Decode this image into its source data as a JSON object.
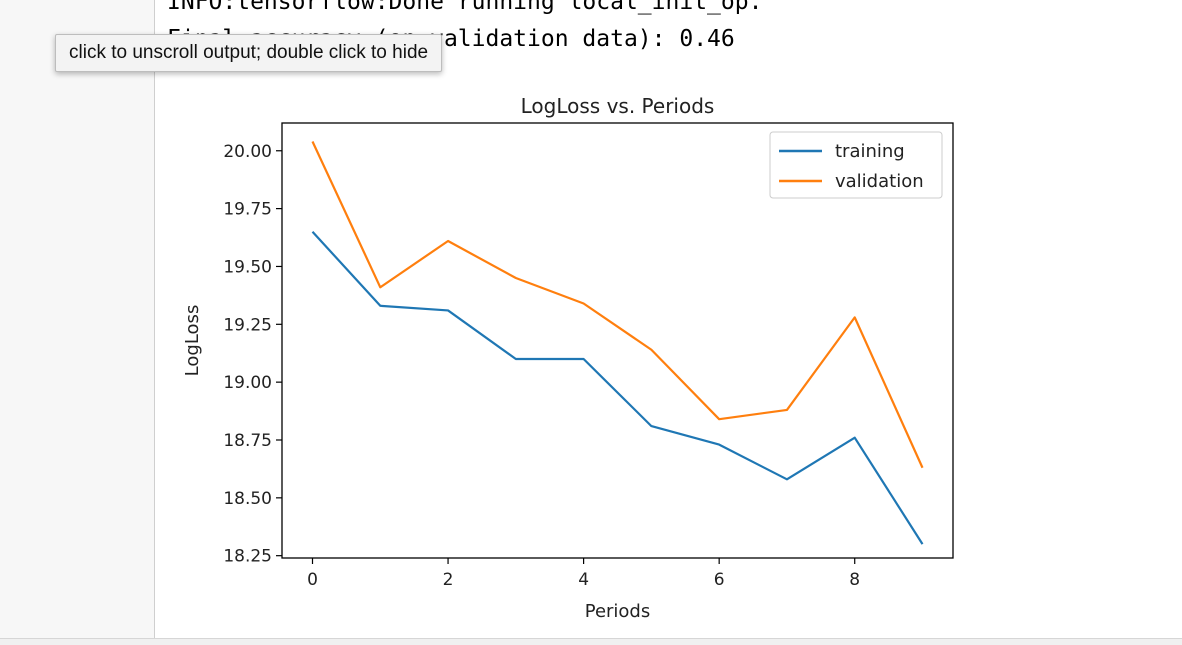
{
  "output": {
    "log_line_1": "INFO:tensorflow:Done running local_init_op.",
    "log_line_2": "Final accuracy (on validation data): 0.46"
  },
  "tooltip": {
    "text": "click to unscroll output; double click to hide"
  },
  "chart_data": {
    "type": "line",
    "title": "LogLoss vs. Periods",
    "xlabel": "Periods",
    "ylabel": "LogLoss",
    "x": [
      0,
      1,
      2,
      3,
      4,
      5,
      6,
      7,
      8,
      9
    ],
    "xlim": [
      -0.45,
      9.45
    ],
    "ylim": [
      18.24,
      20.12
    ],
    "xticks": [
      0,
      2,
      4,
      6,
      8
    ],
    "yticks": [
      "18.25",
      "18.50",
      "18.75",
      "19.00",
      "19.25",
      "19.50",
      "19.75",
      "20.00"
    ],
    "grid": false,
    "legend_position": "top-right",
    "series": [
      {
        "name": "training",
        "color": "#1f77b4",
        "values": [
          19.65,
          19.33,
          19.31,
          19.1,
          19.1,
          18.81,
          18.73,
          18.58,
          18.76,
          18.3
        ]
      },
      {
        "name": "validation",
        "color": "#ff7f0e",
        "values": [
          20.04,
          19.41,
          19.61,
          19.45,
          19.34,
          19.14,
          18.84,
          18.88,
          19.28,
          18.63
        ]
      }
    ]
  }
}
